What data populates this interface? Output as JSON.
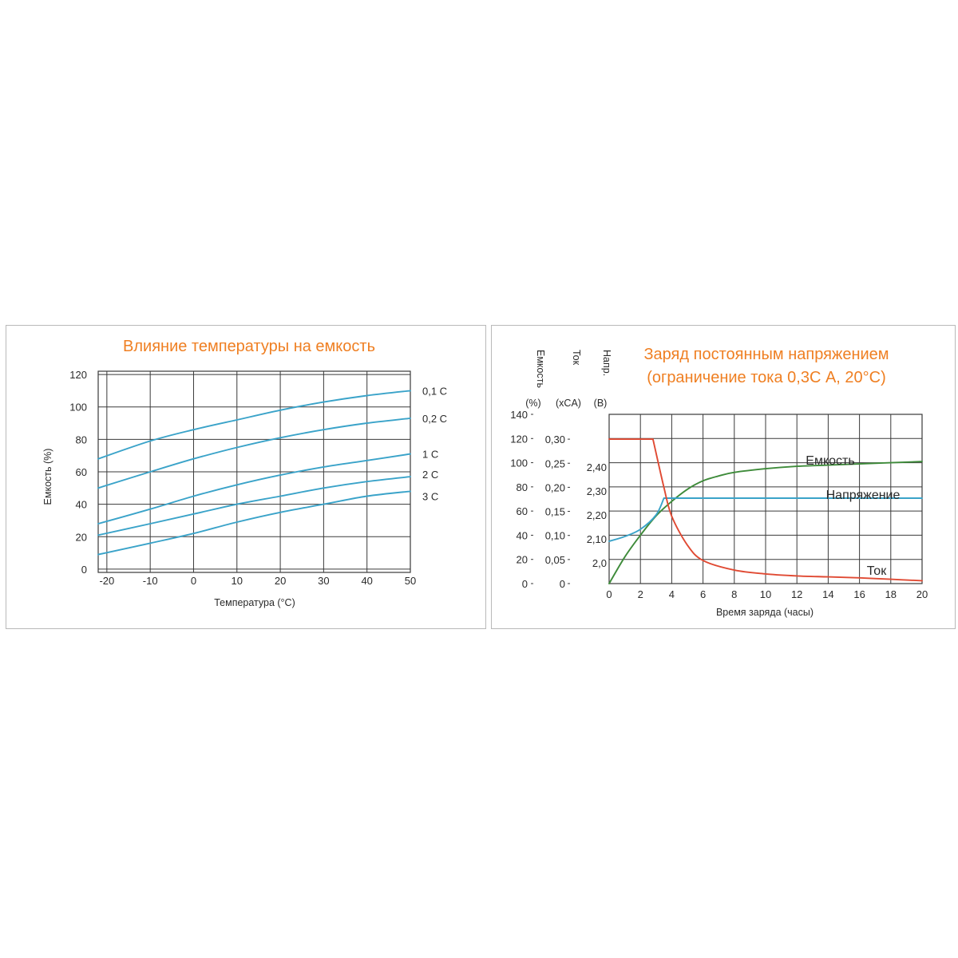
{
  "chart_data": [
    {
      "type": "line",
      "title": "Влияние температуры на емкость",
      "xlabel": "Температура (°C)",
      "ylabel": "Емкость (%)",
      "xlim": [
        -22,
        50
      ],
      "ylim": [
        -2,
        122
      ],
      "x_ticks": [
        -20,
        -10,
        0,
        10,
        20,
        30,
        40,
        50
      ],
      "y_ticks": [
        0,
        20,
        40,
        60,
        80,
        100,
        120
      ],
      "x_tick_labels": [
        "-20",
        "-10",
        "0",
        "10",
        "20",
        "30",
        "40",
        "50"
      ],
      "y_tick_labels": [
        "0",
        "20",
        "40",
        "60",
        "80",
        "100",
        "120"
      ],
      "grid": true,
      "line_color": "#3aa3c9",
      "series": [
        {
          "name": "0,1 C",
          "points": [
            [
              -22,
              68
            ],
            [
              -10,
              79
            ],
            [
              0,
              86
            ],
            [
              10,
              92
            ],
            [
              20,
              98
            ],
            [
              30,
              103
            ],
            [
              40,
              107
            ],
            [
              50,
              110
            ]
          ]
        },
        {
          "name": "0,2 C",
          "points": [
            [
              -22,
              50
            ],
            [
              -10,
              60
            ],
            [
              0,
              68
            ],
            [
              10,
              75
            ],
            [
              20,
              81
            ],
            [
              30,
              86
            ],
            [
              40,
              90
            ],
            [
              50,
              93
            ]
          ]
        },
        {
          "name": "1 C",
          "points": [
            [
              -22,
              28
            ],
            [
              -10,
              37
            ],
            [
              0,
              45
            ],
            [
              10,
              52
            ],
            [
              20,
              58
            ],
            [
              30,
              63
            ],
            [
              40,
              67
            ],
            [
              50,
              71
            ]
          ]
        },
        {
          "name": "2 C",
          "points": [
            [
              -22,
              21
            ],
            [
              -10,
              28
            ],
            [
              0,
              34
            ],
            [
              10,
              40
            ],
            [
              20,
              45
            ],
            [
              30,
              50
            ],
            [
              40,
              54
            ],
            [
              50,
              57
            ]
          ]
        },
        {
          "name": "3 C",
          "points": [
            [
              -22,
              9
            ],
            [
              -10,
              16
            ],
            [
              0,
              22
            ],
            [
              10,
              29
            ],
            [
              20,
              35
            ],
            [
              30,
              40
            ],
            [
              40,
              45
            ],
            [
              50,
              48
            ]
          ]
        }
      ]
    },
    {
      "type": "line",
      "title": "Заряд постоянным напряжением",
      "subtitle": "(ограничение тока 0,3С А, 20°С)",
      "xlabel": "Время заряда (часы)",
      "y_axes": [
        {
          "label": "Емкость",
          "unit": "(%)",
          "ticks": [
            0,
            20,
            40,
            60,
            80,
            100,
            120,
            140
          ],
          "tick_labels": [
            "0",
            "20",
            "40",
            "60",
            "80",
            "100",
            "120",
            "140"
          ]
        },
        {
          "label": "Ток",
          "unit": "(xCA)",
          "ticks": [
            0,
            0.05,
            0.1,
            0.15,
            0.2,
            0.25,
            0.3
          ],
          "tick_labels": [
            "0",
            "0,05",
            "0,10",
            "0,15",
            "0,20",
            "0,25",
            "0,30"
          ]
        },
        {
          "label": "Напр.",
          "unit": "(В)",
          "ticks": [
            2.0,
            2.1,
            2.2,
            2.3,
            2.4
          ],
          "tick_labels": [
            "2,0",
            "2,10",
            "2,20",
            "2,30",
            "2,40"
          ]
        }
      ],
      "xlim": [
        0,
        20
      ],
      "x_ticks": [
        0,
        2,
        4,
        6,
        8,
        10,
        12,
        14,
        16,
        18,
        20
      ],
      "x_tick_labels": [
        "0",
        "2",
        "4",
        "6",
        "8",
        "10",
        "12",
        "14",
        "16",
        "18",
        "20"
      ],
      "grid": true,
      "series": [
        {
          "name": "Емкость",
          "axis": 0,
          "color": "#3e8b3a",
          "points": [
            [
              0,
              0
            ],
            [
              1,
              22
            ],
            [
              2,
              40
            ],
            [
              3,
              56
            ],
            [
              4,
              68
            ],
            [
              5,
              78
            ],
            [
              6,
              85
            ],
            [
              7,
              89
            ],
            [
              8,
              92
            ],
            [
              10,
              95
            ],
            [
              12,
              97
            ],
            [
              14,
              98
            ],
            [
              16,
              99
            ],
            [
              18,
              100
            ],
            [
              20,
              101
            ]
          ]
        },
        {
          "name": "Напряжение",
          "axis": 2,
          "color": "#3aa3c9",
          "points": [
            [
              0,
              2.09
            ],
            [
              1,
              2.11
            ],
            [
              2,
              2.14
            ],
            [
              3,
              2.2
            ],
            [
              3.5,
              2.27
            ],
            [
              20,
              2.27
            ]
          ]
        },
        {
          "name": "Ток",
          "axis": 1,
          "color": "#e04a33",
          "points": [
            [
              0,
              0.3
            ],
            [
              2.8,
              0.3
            ],
            [
              3.5,
              0.2
            ],
            [
              4,
              0.14
            ],
            [
              5,
              0.08
            ],
            [
              6,
              0.048
            ],
            [
              8,
              0.028
            ],
            [
              10,
              0.02
            ],
            [
              12,
              0.016
            ],
            [
              14,
              0.014
            ],
            [
              16,
              0.012
            ],
            [
              18,
              0.009
            ],
            [
              20,
              0.006
            ]
          ]
        }
      ]
    }
  ]
}
